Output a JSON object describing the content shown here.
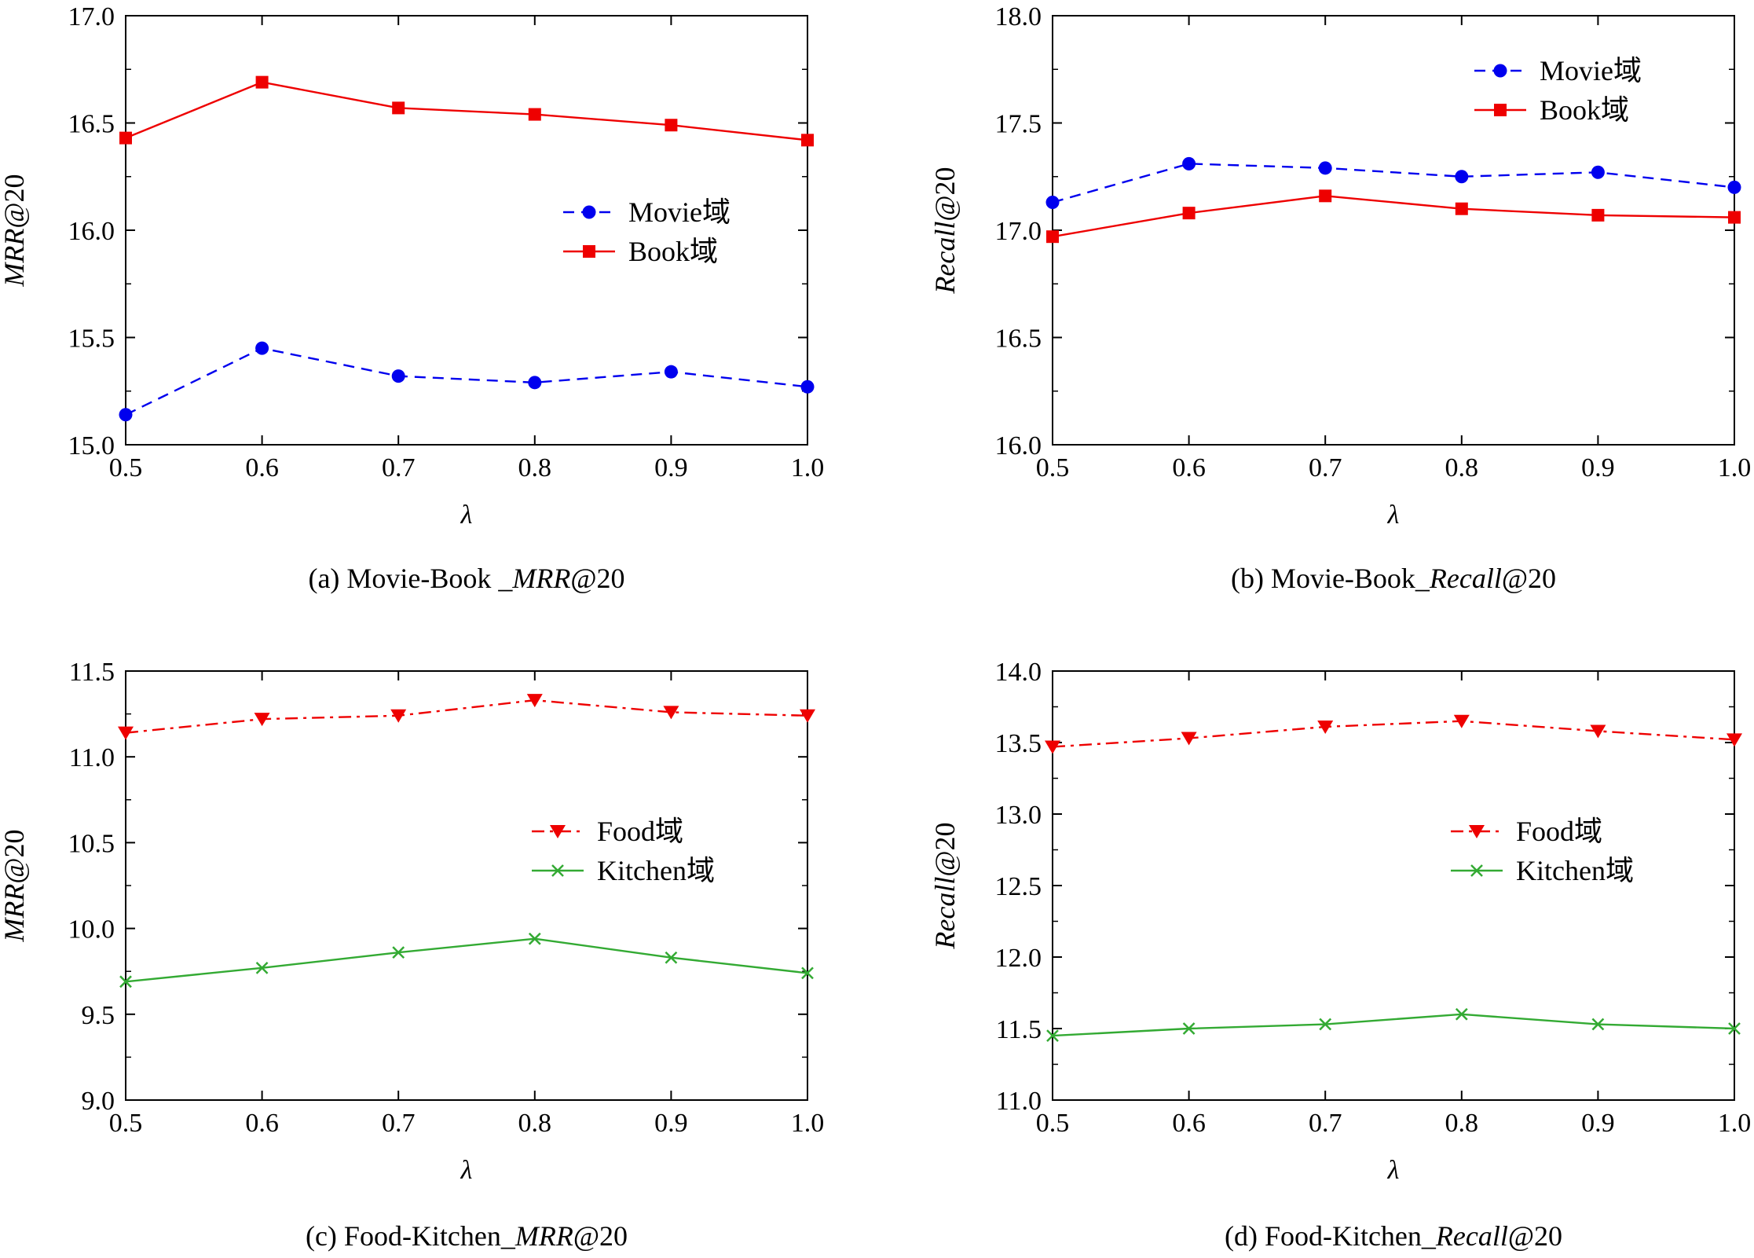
{
  "chart_data": [
    {
      "type": "line",
      "caption": {
        "prefix": "(a)  Movie-Book _",
        "italic": "MRR",
        "suffix": "@20"
      },
      "xlabel": "λ",
      "ylabel": {
        "italic": "MRR",
        "suffix": "@20"
      },
      "x": [
        0.5,
        0.6,
        0.7,
        0.8,
        0.9,
        1.0
      ],
      "xticks": [
        "0.5",
        "0.6",
        "0.7",
        "0.8",
        "0.9",
        "1.0"
      ],
      "ylim": [
        15.0,
        17.0
      ],
      "yticks": [
        "15.0",
        "15.5",
        "16.0",
        "16.5",
        "17.0"
      ],
      "legend_position": "center-right",
      "grid": false,
      "series": [
        {
          "name": "Movie域",
          "values": [
            15.14,
            15.45,
            15.32,
            15.29,
            15.34,
            15.27
          ],
          "color": "#0000ee",
          "marker": "circle",
          "dash": "dashed"
        },
        {
          "name": "Book域",
          "values": [
            16.43,
            16.69,
            16.57,
            16.54,
            16.49,
            16.42
          ],
          "color": "#ee0000",
          "marker": "square",
          "dash": "solid"
        }
      ]
    },
    {
      "type": "line",
      "caption": {
        "prefix": "(b)  Movie-Book_",
        "italic": "Recall",
        "suffix": "@20"
      },
      "xlabel": "λ",
      "ylabel": {
        "italic": "Recall",
        "suffix": "@20"
      },
      "x": [
        0.5,
        0.6,
        0.7,
        0.8,
        0.9,
        1.0
      ],
      "xticks": [
        "0.5",
        "0.6",
        "0.7",
        "0.8",
        "0.9",
        "1.0"
      ],
      "ylim": [
        16.0,
        18.0
      ],
      "yticks": [
        "16.0",
        "16.5",
        "17.0",
        "17.5",
        "18.0"
      ],
      "legend_position": "top-right",
      "grid": false,
      "series": [
        {
          "name": "Movie域",
          "values": [
            17.13,
            17.31,
            17.29,
            17.25,
            17.27,
            17.2
          ],
          "color": "#0000ee",
          "marker": "circle",
          "dash": "dashed"
        },
        {
          "name": "Book域",
          "values": [
            16.97,
            17.08,
            17.16,
            17.1,
            17.07,
            17.06
          ],
          "color": "#ee0000",
          "marker": "square",
          "dash": "solid"
        }
      ]
    },
    {
      "type": "line",
      "caption": {
        "prefix": "(c)  Food-Kitchen_",
        "italic": "MRR",
        "suffix": "@20"
      },
      "xlabel": "λ",
      "ylabel": {
        "italic": "MRR",
        "suffix": "@20"
      },
      "x": [
        0.5,
        0.6,
        0.7,
        0.8,
        0.9,
        1.0
      ],
      "xticks": [
        "0.5",
        "0.6",
        "0.7",
        "0.8",
        "0.9",
        "1.0"
      ],
      "ylim": [
        9.0,
        11.5
      ],
      "yticks": [
        "9.0",
        "9.5",
        "10.0",
        "10.5",
        "11.0",
        "11.5"
      ],
      "legend_position": "center-right",
      "grid": false,
      "series": [
        {
          "name": "Food域",
          "values": [
            11.14,
            11.22,
            11.24,
            11.33,
            11.26,
            11.24
          ],
          "color": "#ee0000",
          "marker": "triangle-down",
          "dash": "dashdot"
        },
        {
          "name": "Kitchen域",
          "values": [
            9.69,
            9.77,
            9.86,
            9.94,
            9.83,
            9.74
          ],
          "color": "#33aa33",
          "marker": "x",
          "dash": "solid"
        }
      ]
    },
    {
      "type": "line",
      "caption": {
        "prefix": "(d)  Food-Kitchen_",
        "italic": "Recall",
        "suffix": "@20"
      },
      "xlabel": "λ",
      "ylabel": {
        "italic": "Recall",
        "suffix": "@20"
      },
      "x": [
        0.5,
        0.6,
        0.7,
        0.8,
        0.9,
        1.0
      ],
      "xticks": [
        "0.5",
        "0.6",
        "0.7",
        "0.8",
        "0.9",
        "1.0"
      ],
      "ylim": [
        11.0,
        14.0
      ],
      "yticks": [
        "11.0",
        "11.5",
        "12.0",
        "12.5",
        "13.0",
        "13.5",
        "14.0"
      ],
      "legend_position": "center-right",
      "grid": false,
      "series": [
        {
          "name": "Food域",
          "values": [
            13.47,
            13.53,
            13.61,
            13.65,
            13.58,
            13.52
          ],
          "color": "#ee0000",
          "marker": "triangle-down",
          "dash": "dashdot"
        },
        {
          "name": "Kitchen域",
          "values": [
            11.45,
            11.5,
            11.53,
            11.6,
            11.53,
            11.5
          ],
          "color": "#33aa33",
          "marker": "x",
          "dash": "solid"
        }
      ]
    }
  ]
}
